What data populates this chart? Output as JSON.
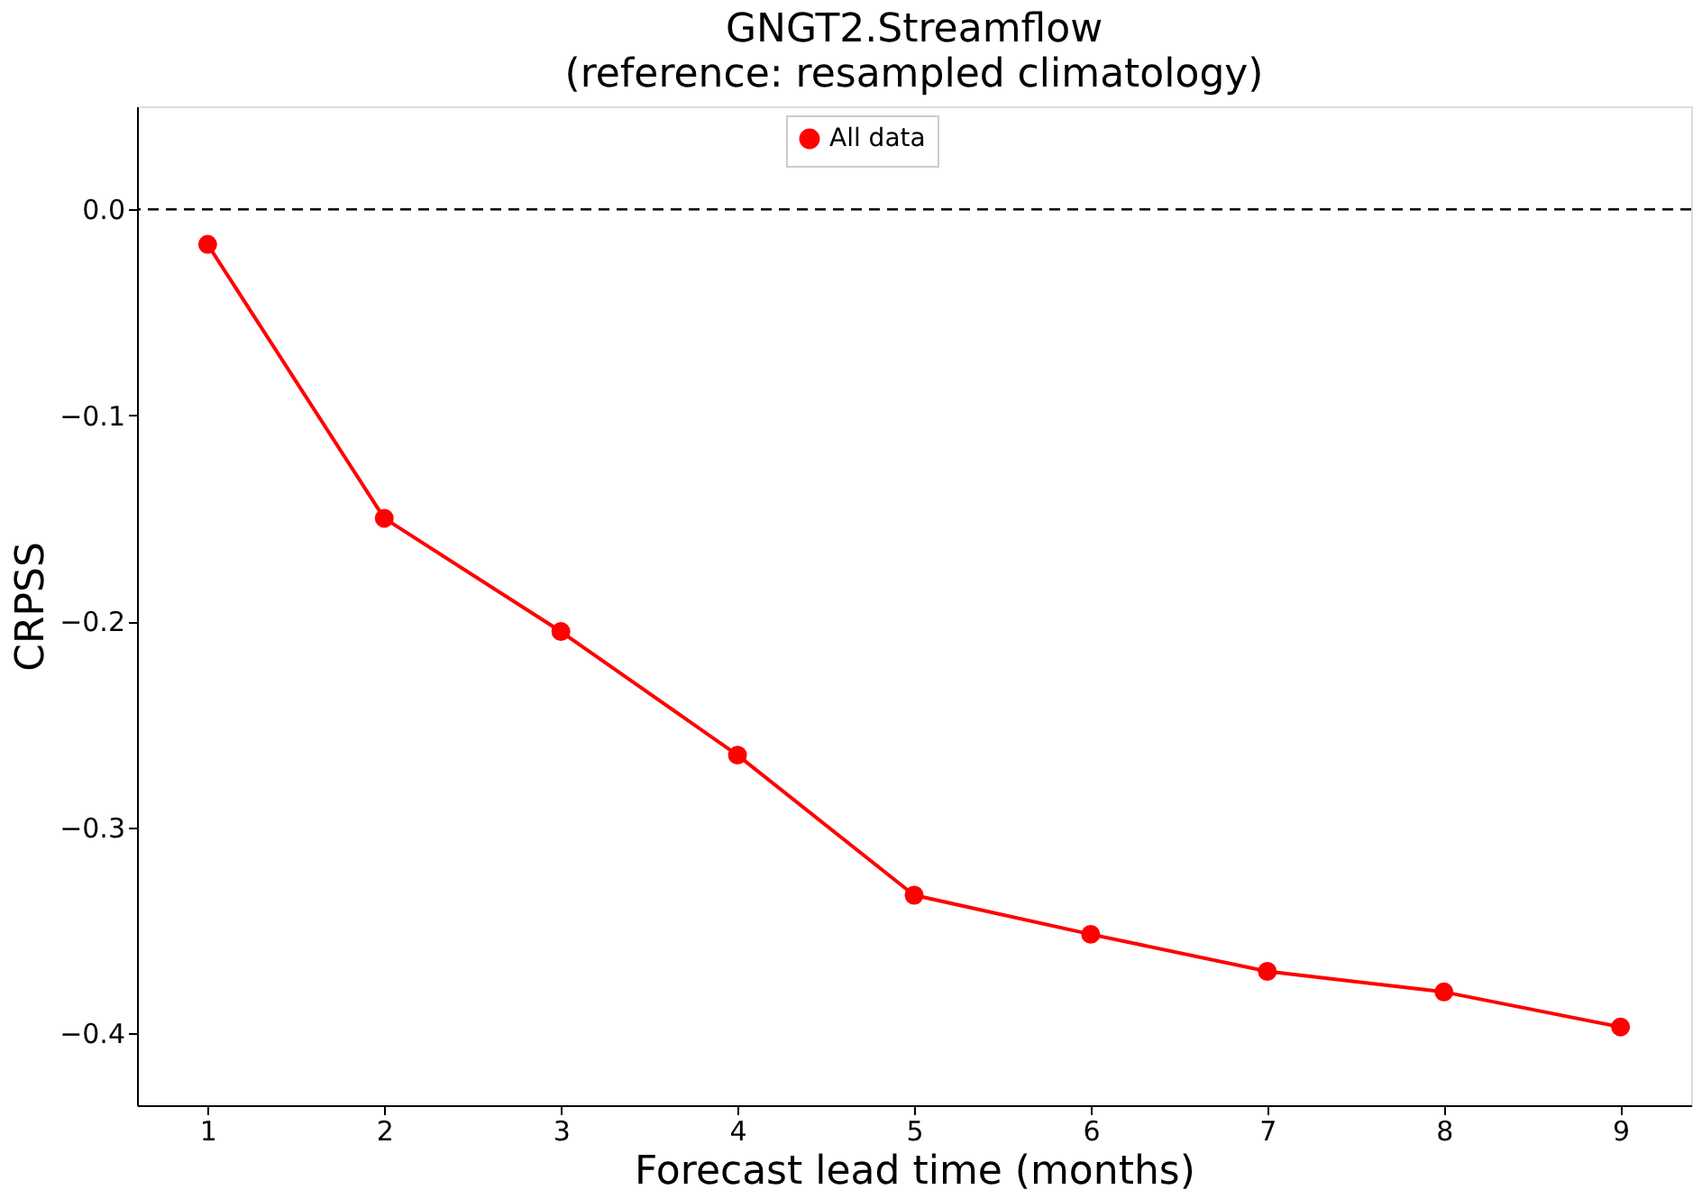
{
  "chart_data": {
    "type": "line",
    "title": "GNGT2.Streamflow",
    "subtitle": "(reference: resampled climatology)",
    "xlabel": "Forecast lead time (months)",
    "ylabel": "CRPSS",
    "x": [
      1,
      2,
      3,
      4,
      5,
      6,
      7,
      8,
      9
    ],
    "series": [
      {
        "name": "All data",
        "color": "#ff0000",
        "values": [
          -0.017,
          -0.15,
          -0.205,
          -0.265,
          -0.333,
          -0.352,
          -0.37,
          -0.38,
          -0.397
        ]
      }
    ],
    "xlim": [
      0.6,
      9.4
    ],
    "xticks": [
      1,
      2,
      3,
      4,
      5,
      6,
      7,
      8,
      9
    ],
    "ylim": [
      -0.435,
      0.05
    ],
    "yticks": [
      {
        "value": 0,
        "label": "0.0"
      },
      {
        "value": -0.1,
        "label": "−0.1"
      },
      {
        "value": -0.2,
        "label": "−0.2"
      },
      {
        "value": -0.3,
        "label": "−0.3"
      },
      {
        "value": -0.4,
        "label": "−0.4"
      }
    ],
    "ref_lines": [
      {
        "axis": "y",
        "value": 0,
        "label": null,
        "color": "#000000",
        "line_style": "dashed"
      }
    ],
    "grid": false,
    "legend": "top",
    "marker": "circle",
    "line_style": "solid"
  }
}
